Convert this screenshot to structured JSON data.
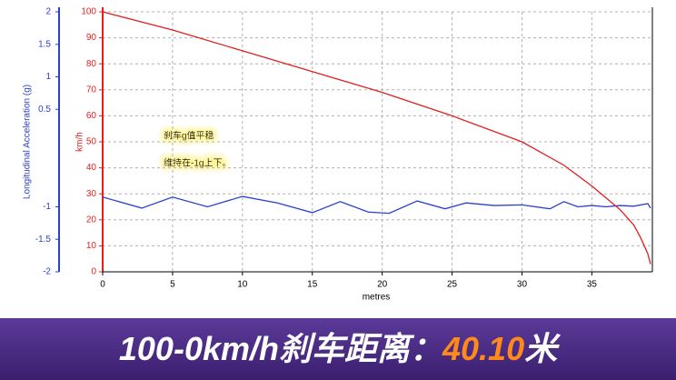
{
  "chart_data": {
    "type": "line",
    "y_label": "Longitudinal Acceleration (g)",
    "y2_label": "km/h",
    "x_label": "metres",
    "annotations": [
      "刹车g值平稳",
      "维持在-1g上下。"
    ],
    "xlim": [
      0,
      39.2
    ],
    "xticks": [
      0,
      5,
      10,
      15,
      20,
      25,
      30,
      35
    ],
    "ylim": [
      -2,
      2
    ],
    "yticks": [
      -2,
      -1.5,
      -1,
      0.5,
      1,
      1.5,
      2
    ],
    "y2lim": [
      0,
      100
    ],
    "y2ticks": [
      0,
      10,
      20,
      30,
      40,
      50,
      60,
      70,
      80,
      90,
      100
    ],
    "grid": true,
    "series": [
      {
        "name": "Longitudinal Acceleration (g)",
        "color": "#2a3fd0",
        "x": [
          0,
          2.8,
          5,
          7.5,
          10,
          12.5,
          15,
          17,
          19,
          20.5,
          22.5,
          24.5,
          26,
          28,
          30,
          32,
          33,
          34,
          35,
          36,
          37,
          38,
          39,
          39.2
        ],
        "values": [
          -0.85,
          -1.02,
          -0.85,
          -1.0,
          -0.84,
          -0.94,
          -1.09,
          -0.92,
          -1.08,
          -1.1,
          -0.91,
          -1.03,
          -0.94,
          -0.98,
          -0.97,
          -1.03,
          -0.92,
          -1.0,
          -0.98,
          -1.0,
          -0.98,
          -0.99,
          -0.95,
          -1.02
        ]
      },
      {
        "name": "km/h",
        "color": "#e02020",
        "axis": "y2",
        "x": [
          0,
          5,
          10,
          15,
          20,
          25,
          30,
          33,
          35,
          37,
          38,
          38.5,
          39,
          39.2
        ],
        "values": [
          100,
          93,
          85,
          77,
          69,
          60,
          50,
          41,
          33,
          24,
          18,
          13,
          7,
          3
        ]
      }
    ]
  },
  "banner": {
    "prefix": "100-0km/h刹车距离：",
    "value": "40.10",
    "suffix": "米"
  }
}
